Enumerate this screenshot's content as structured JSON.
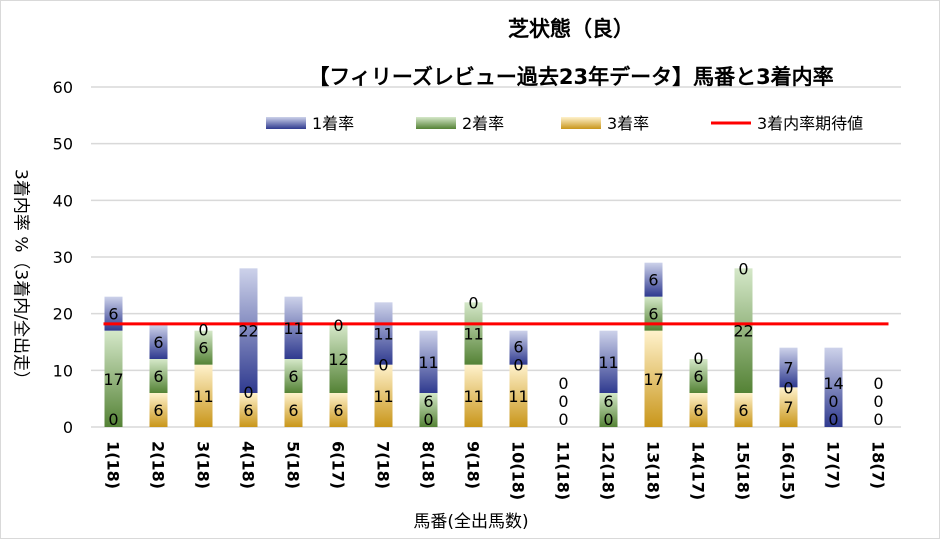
{
  "chart_data": {
    "type": "bar",
    "stacked": true,
    "title": "芝状態（良）",
    "subtitle": "【フィリーズレビュー過去23年データ】馬番と3着内率",
    "xlabel": "馬番(全出馬数)",
    "ylabel": "3着内率 %（3着内/全出走）",
    "ylim": [
      0,
      60
    ],
    "yticks": [
      0,
      10,
      20,
      30,
      40,
      50,
      60
    ],
    "grid": true,
    "legend_position": "top",
    "categories": [
      "1(18)",
      "2(18)",
      "3(18)",
      "4(18)",
      "5(18)",
      "6(17)",
      "7(18)",
      "8(18)",
      "9(18)",
      "10(18)",
      "11(18)",
      "12(18)",
      "13(18)",
      "14(17)",
      "15(18)",
      "16(15)",
      "17(7)",
      "18(7)"
    ],
    "series": [
      {
        "name": "3着率",
        "color": "#c9961a",
        "values": [
          0,
          6,
          11,
          6,
          6,
          6,
          11,
          0,
          11,
          11,
          0,
          0,
          17,
          6,
          6,
          7,
          0,
          0
        ]
      },
      {
        "name": "2着率",
        "color": "#548235",
        "values": [
          17,
          6,
          6,
          0,
          6,
          12,
          0,
          6,
          11,
          0,
          0,
          6,
          6,
          6,
          22,
          0,
          0,
          0
        ]
      },
      {
        "name": "1着率",
        "color": "#2f3a8f",
        "values": [
          6,
          6,
          0,
          22,
          11,
          0,
          11,
          11,
          0,
          6,
          0,
          11,
          6,
          0,
          0,
          7,
          14,
          0
        ]
      }
    ],
    "reference_line": {
      "name": "3着内率期待値",
      "value": 18.2,
      "color": "#ff0000"
    }
  }
}
